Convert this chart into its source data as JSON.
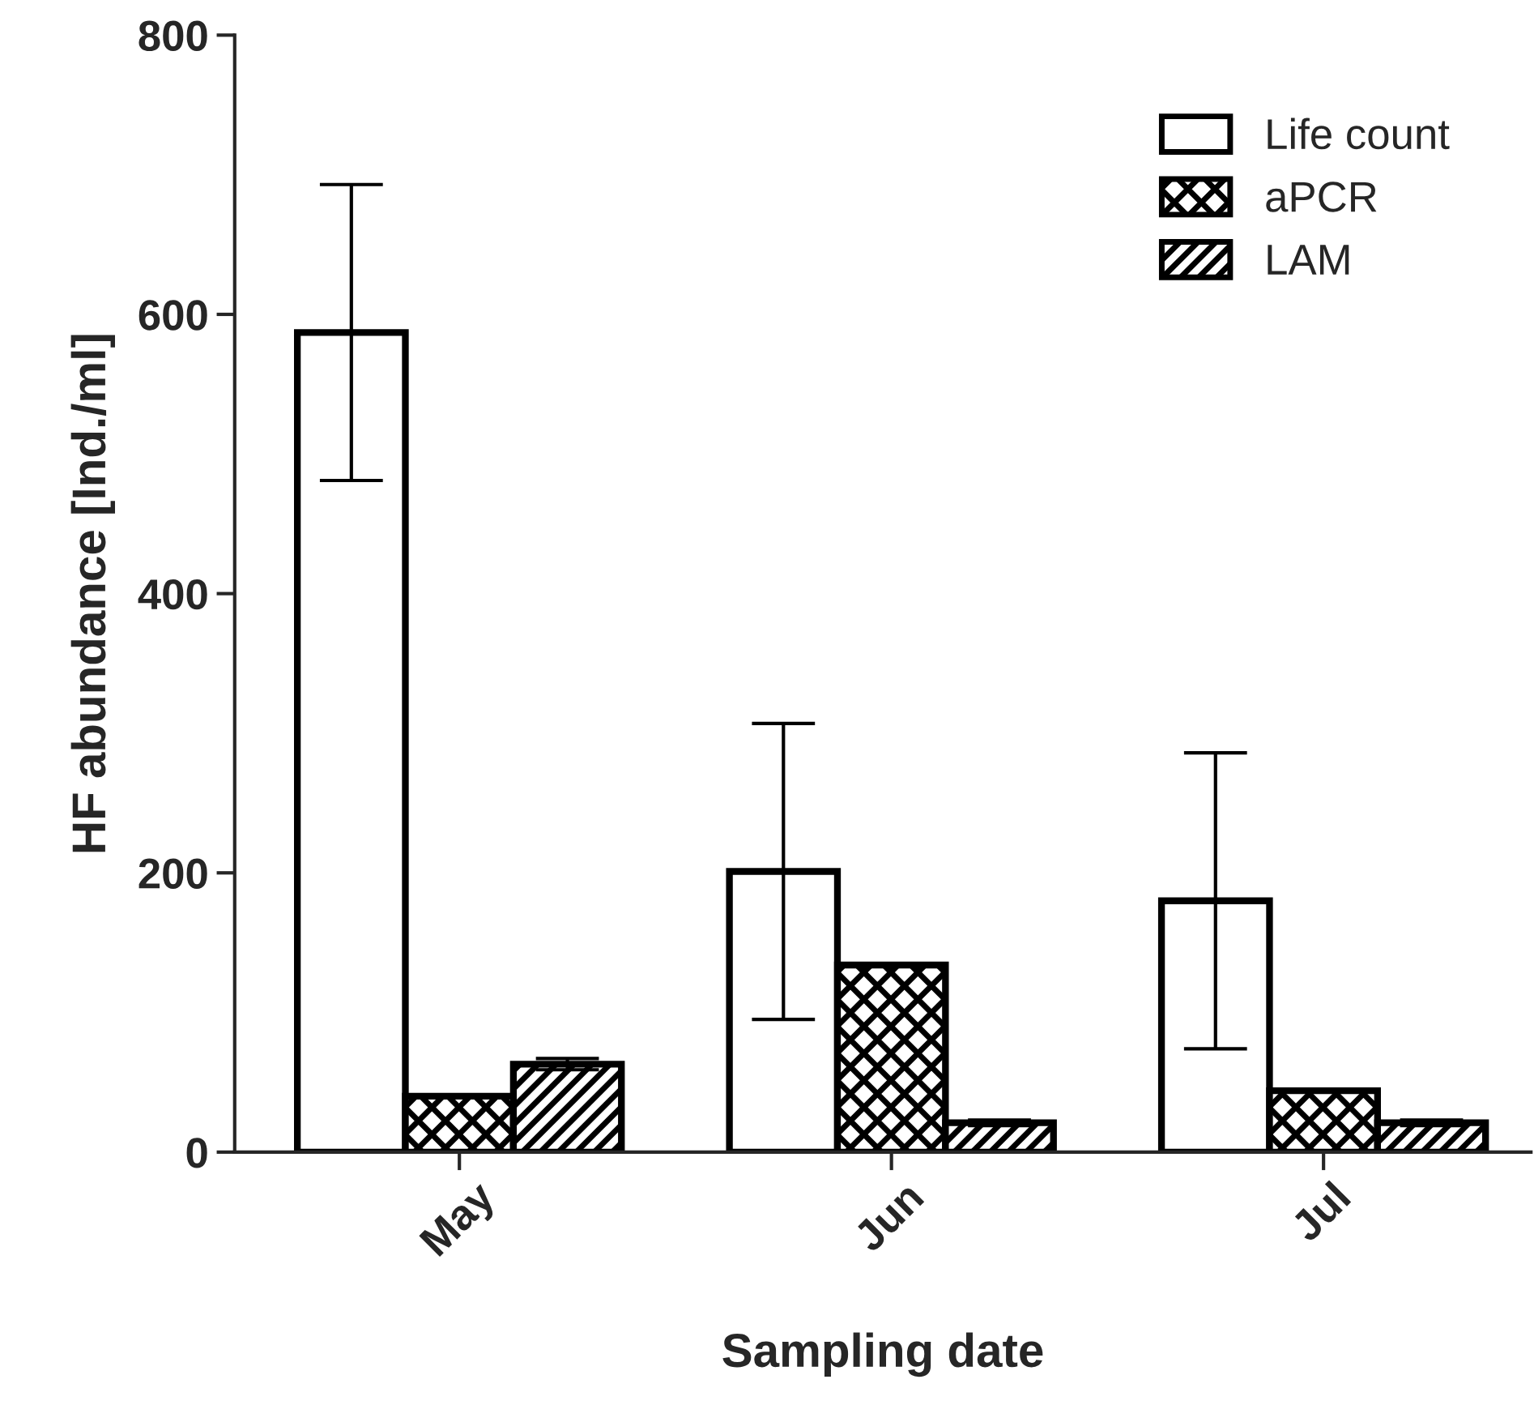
{
  "chart_data": {
    "type": "bar",
    "xlabel": "Sampling date",
    "ylabel": "HF abundance [Ind./ml]",
    "categories": [
      "May",
      "Jun",
      "Jul"
    ],
    "series": [
      {
        "name": "Life count",
        "color": "#ffffff",
        "values": [
          587,
          201,
          180
        ],
        "errors": [
          106,
          106,
          106
        ]
      },
      {
        "name": "aPCR",
        "color": "#000000",
        "values": [
          40,
          134,
          44
        ]
      },
      {
        "name": "LAM",
        "color": "#000000",
        "values": [
          63,
          21,
          21
        ],
        "errors": [
          4,
          2,
          2
        ]
      }
    ],
    "ylim": [
      0,
      800
    ],
    "yticks": [
      0,
      200,
      400,
      600,
      800
    ],
    "grid": false,
    "legend": "top right"
  }
}
